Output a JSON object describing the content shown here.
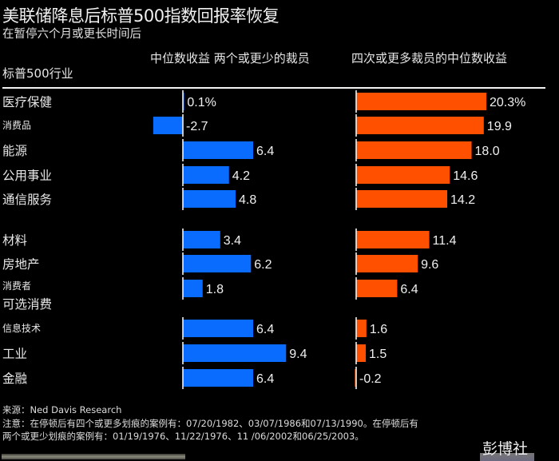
{
  "header": {
    "title": "美联储降息后标普500指数回报率恢复",
    "subtitle": "在暂停六个月或更长时间后",
    "row_header": "标普500行业",
    "col_blue": "中位数收益 两个或更少的裁员",
    "col_orange": "四次或更多裁员的中位数收益"
  },
  "chart_data": {
    "type": "bar",
    "orientation": "horizontal",
    "title": "美联储降息后标普500指数回报率恢复",
    "subtitle": "在暂停六个月或更长时间后",
    "ylabel": "标普500行业",
    "unit": "%",
    "categories": [
      "医疗保健",
      "消费品",
      "能源",
      "公用事业",
      "通信服务",
      "材料",
      "房地产",
      "消费者\n可选消费",
      "信息技术",
      "工业",
      "金融"
    ],
    "category_lines": [
      [
        "医疗保健"
      ],
      [
        "消费品"
      ],
      [
        "能源"
      ],
      [
        "公用事业"
      ],
      [
        "通信服务"
      ],
      [
        "材料"
      ],
      [
        "房地产"
      ],
      [
        "消费者",
        "可选消费"
      ],
      [
        "信息技术"
      ],
      [
        "工业"
      ],
      [
        "金融"
      ]
    ],
    "series": [
      {
        "name": "中位数收益 两个或更少的裁员",
        "color": "#0a6cff",
        "values": [
          0.1,
          -2.7,
          6.4,
          4.2,
          4.8,
          3.4,
          6.2,
          1.8,
          6.4,
          9.4,
          6.4
        ],
        "labels": [
          "0.1%",
          "-2.7",
          "6.4",
          "4.2",
          "4.8",
          "3.4",
          "6.2",
          "1.8",
          "6.4",
          "9.4",
          "6.4"
        ]
      },
      {
        "name": "四次或更多裁员的中位数收益",
        "color": "#ff5000",
        "values": [
          20.3,
          19.9,
          18.0,
          14.6,
          14.2,
          11.4,
          9.6,
          6.4,
          1.6,
          1.5,
          -0.2
        ],
        "labels": [
          "20.3%",
          "19.9",
          "18.0",
          "14.6",
          "14.2",
          "11.4",
          "9.6",
          "6.4",
          "1.6",
          "1.5",
          "-0.2"
        ]
      }
    ],
    "grid": false,
    "legend": "column headers at top"
  },
  "footer": {
    "source": "来源：Ned Davis Research",
    "note_line1": "注意：在停顿后有四个或更多划痕的案例有：07/20/1982、03/07/1986和07/13/1990。在停顿后有",
    "note_line2": "两个或更少划痕的案例有：01/19/1976、11/22/1976、11 /06/2002和06/25/2003。",
    "watermark": "彭博社"
  }
}
